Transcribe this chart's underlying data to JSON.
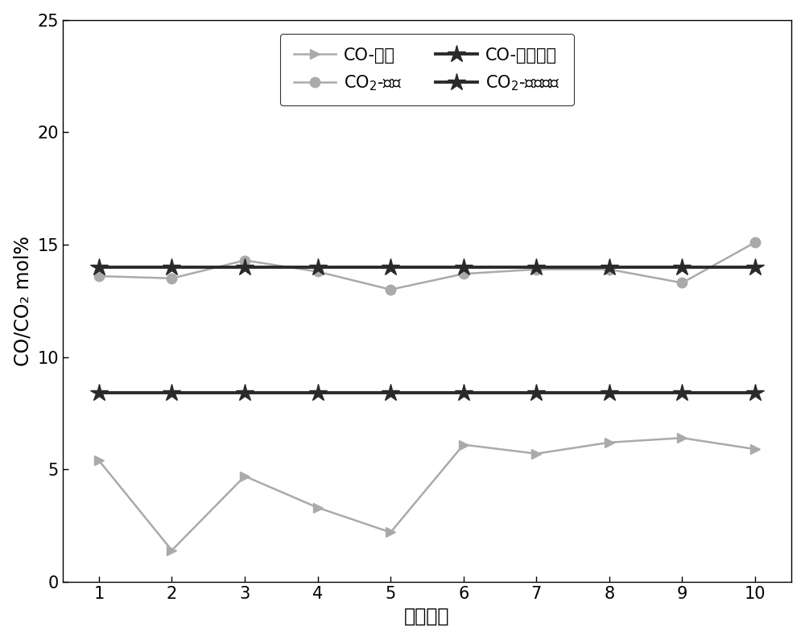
{
  "x": [
    1,
    2,
    3,
    4,
    5,
    6,
    7,
    8,
    9,
    10
  ],
  "co_exp": [
    5.4,
    1.4,
    4.7,
    3.3,
    2.2,
    6.1,
    5.7,
    6.2,
    6.4,
    5.9
  ],
  "co2_exp": [
    13.6,
    13.5,
    14.3,
    13.8,
    13.0,
    13.7,
    13.9,
    13.9,
    13.3,
    15.1
  ],
  "co_sim": [
    8.4,
    8.4,
    8.4,
    8.4,
    8.4,
    8.4,
    8.4,
    8.4,
    8.4,
    8.4
  ],
  "co2_sim": [
    14.0,
    14.0,
    14.0,
    14.0,
    14.0,
    14.0,
    14.0,
    14.0,
    14.0,
    14.0
  ],
  "color_exp": "#aaaaaa",
  "color_sim": "#2a2a2a",
  "ylabel": "CO/CO₂ mol%",
  "xlabel": "实验次数",
  "ylim": [
    0,
    25
  ],
  "xlim": [
    0.5,
    10.5
  ],
  "yticks": [
    0,
    5,
    10,
    15,
    20,
    25
  ],
  "xticks": [
    1,
    2,
    3,
    4,
    5,
    6,
    7,
    8,
    9,
    10
  ],
  "legend_co_exp": "CO-实验",
  "legend_co2_exp": "CO$_2$-实验",
  "legend_co_sim": "CO-模拟系统",
  "legend_co2_sim": "CO$_2$-模拟系统",
  "linewidth_exp": 1.8,
  "linewidth_sim": 2.8,
  "markersize_exp": 9,
  "markersize_sim": 16,
  "fontsize_tick": 15,
  "fontsize_label": 17,
  "fontsize_legend": 15
}
